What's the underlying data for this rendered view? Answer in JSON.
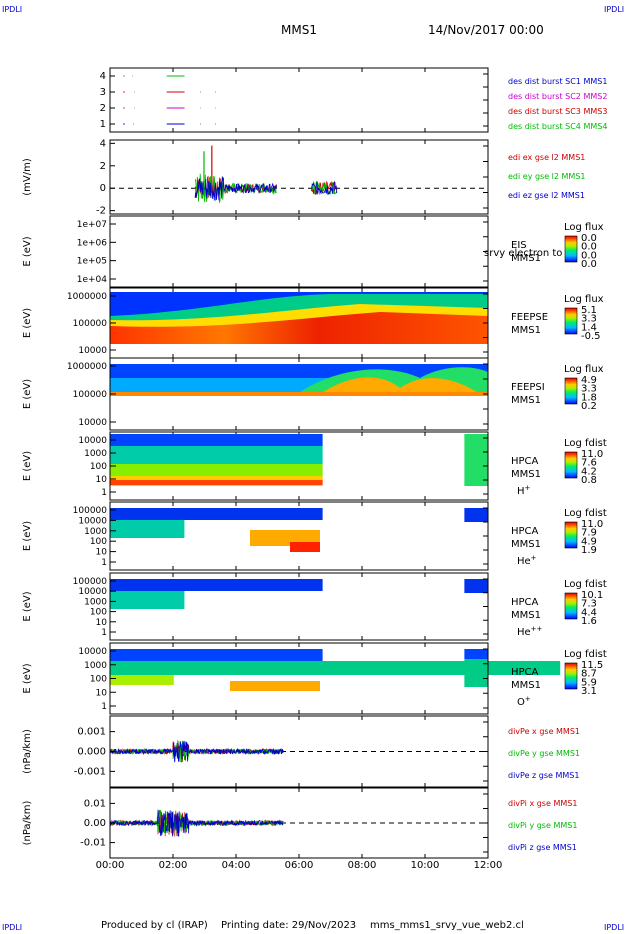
{
  "corner_label": "IPDLI",
  "header": {
    "spacecraft": "MMS1",
    "date": "14/Nov/2017 00:00"
  },
  "footer": {
    "producer": "Produced by cl (IRAP)",
    "printing": "Printing date: 29/Nov/2023",
    "file": "mms_mms1_srvy_vue_web2.cl"
  },
  "chart_data": {
    "type": "line",
    "x_ticks": [
      "00:00",
      "02:00",
      "04:00",
      "06:00",
      "08:00",
      "10:00",
      "12:00"
    ],
    "x_range": [
      "00:00",
      "12:00"
    ],
    "panels": [
      {
        "id": "burst",
        "type": "line",
        "ylim": [
          0.5,
          4.5
        ],
        "y_ticks": [
          "4",
          "3",
          "2",
          "1"
        ],
        "y_values": [
          4,
          3,
          2,
          1
        ],
        "ylabel": "",
        "legend": [
          {
            "text": "des dist burst SC1 MMS1",
            "color": "#0000cc"
          },
          {
            "text": "des dist burst SC2 MMS2",
            "color": "#cc00cc"
          },
          {
            "text": "des dist burst SC3 MMS3",
            "color": "#cc0000"
          },
          {
            "text": "des dist burst SC4 MMS4",
            "color": "#00bb00"
          }
        ],
        "series": [
          {
            "level": 4,
            "color": "#00bb00",
            "intervals": [
              [
                "00:25",
                "00:28"
              ],
              [
                "00:42",
                "00:43"
              ],
              [
                "01:48",
                "02:22"
              ]
            ]
          },
          {
            "level": 3,
            "color": "#cc0000",
            "intervals": [
              [
                "00:25",
                "00:28"
              ],
              [
                "00:46",
                "00:47"
              ],
              [
                "01:48",
                "02:22"
              ],
              [
                "02:52",
                "02:53"
              ],
              [
                "03:20",
                "03:21"
              ]
            ]
          },
          {
            "level": 2,
            "color": "#cc00cc",
            "intervals": [
              [
                "00:25",
                "00:28"
              ],
              [
                "00:46",
                "00:47"
              ],
              [
                "01:48",
                "02:22"
              ],
              [
                "02:52",
                "02:53"
              ],
              [
                "03:20",
                "03:21"
              ]
            ]
          },
          {
            "level": 1,
            "color": "#0000cc",
            "intervals": [
              [
                "00:25",
                "00:28"
              ],
              [
                "00:44",
                "00:45"
              ],
              [
                "01:48",
                "02:22"
              ],
              [
                "02:52",
                "02:53"
              ],
              [
                "03:20",
                "03:21"
              ]
            ]
          }
        ]
      },
      {
        "id": "edi",
        "type": "line",
        "ylabel": "(mV/m)",
        "ylim": [
          -2.3,
          4.3
        ],
        "y_ticks": [
          "4",
          "2",
          "0",
          "-2"
        ],
        "y_values": [
          4,
          2,
          0,
          -2
        ],
        "legend": [
          {
            "text": "edi ex gse l2 MMS1",
            "color": "#cc0000"
          },
          {
            "text": "edi ey gse l2 MMS1",
            "color": "#00bb00"
          },
          {
            "text": "edi ez gse l2 MMS1",
            "color": "#0000cc"
          }
        ]
      },
      {
        "id": "eis",
        "type": "heatmap",
        "ylabel": "E (eV)",
        "y_ticks": [
          "1e+07",
          "1e+06",
          "1e+05",
          "1e+04"
        ],
        "label1": "EIS",
        "label2": "MMS1",
        "overlay_text": "srvy electron to",
        "cbar_title": "Log flux",
        "cbar_ticks": [
          "0.0",
          "0.0",
          "0.0",
          "0.0"
        ]
      },
      {
        "id": "feepse",
        "type": "heatmap",
        "ylabel": "E (eV)",
        "y_ticks": [
          "1000000",
          "100000",
          "10000"
        ],
        "label1": "FEEPSE",
        "label2": "MMS1",
        "cbar_title": "Log flux",
        "cbar_ticks": [
          "5.1",
          "3.3",
          "1.4",
          "-0.5"
        ]
      },
      {
        "id": "feepsi",
        "type": "heatmap",
        "ylabel": "E (eV)",
        "y_ticks": [
          "1000000",
          "100000",
          "10000"
        ],
        "label1": "FEEPSI",
        "label2": "MMS1",
        "cbar_title": "Log flux",
        "cbar_ticks": [
          "4.9",
          "3.3",
          "1.8",
          "0.2"
        ]
      },
      {
        "id": "hpca_h",
        "type": "heatmap",
        "ylabel": "E (eV)",
        "y_ticks": [
          "10000",
          "1000",
          "100",
          "10",
          "1"
        ],
        "label1": "HPCA",
        "label2": "MMS1",
        "species": "H",
        "species_sup": "+",
        "cbar_title": "Log fdist",
        "cbar_ticks": [
          "11.0",
          "7.6",
          "4.2",
          "0.8"
        ]
      },
      {
        "id": "hpca_he",
        "type": "heatmap",
        "ylabel": "E (eV)",
        "y_ticks": [
          "100000",
          "10000",
          "1000",
          "100",
          "10",
          "1"
        ],
        "label1": "HPCA",
        "label2": "MMS1",
        "species": "He",
        "species_sup": "+",
        "cbar_title": "Log fdist",
        "cbar_ticks": [
          "11.0",
          "7.9",
          "4.9",
          "1.9"
        ]
      },
      {
        "id": "hpca_hepp",
        "type": "heatmap",
        "ylabel": "E (eV)",
        "y_ticks": [
          "100000",
          "10000",
          "1000",
          "100",
          "10",
          "1"
        ],
        "label1": "HPCA",
        "label2": "MMS1",
        "species": "He",
        "species_sup": "++",
        "cbar_title": "Log fdist",
        "cbar_ticks": [
          "10.1",
          "7.3",
          "4.4",
          "1.6"
        ]
      },
      {
        "id": "hpca_o",
        "type": "heatmap",
        "ylabel": "E (eV)",
        "y_ticks": [
          "10000",
          "1000",
          "100",
          "10",
          "1"
        ],
        "label1": "HPCA",
        "label2": "MMS1",
        "species": "O",
        "species_sup": "+",
        "cbar_title": "Log fdist",
        "cbar_ticks": [
          "11.5",
          "8.7",
          "5.9",
          "3.1"
        ]
      },
      {
        "id": "divpe",
        "type": "line",
        "ylabel": "(nPa/km)",
        "y_ticks": [
          "0.001",
          "0.000",
          "-0.001"
        ],
        "legend": [
          {
            "text": "divPe x gse MMS1",
            "color": "#cc0000"
          },
          {
            "text": "divPe y gse MMS1",
            "color": "#00bb00"
          },
          {
            "text": "divPe z gse MMS1",
            "color": "#0000cc"
          }
        ]
      },
      {
        "id": "divpi",
        "type": "line",
        "ylabel": "(nPa/km)",
        "y_ticks": [
          "0.01",
          "0.00",
          "-0.01"
        ],
        "legend": [
          {
            "text": "divPi x gse MMS1",
            "color": "#cc0000"
          },
          {
            "text": "divPi y gse MMS1",
            "color": "#00bb00"
          },
          {
            "text": "divPi z gse MMS1",
            "color": "#0000cc"
          }
        ]
      }
    ]
  }
}
